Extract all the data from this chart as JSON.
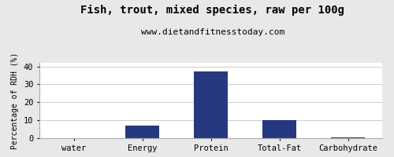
{
  "title": "Fish, trout, mixed species, raw per 100g",
  "subtitle": "www.dietandfitnesstoday.com",
  "categories": [
    "water",
    "Energy",
    "Protein",
    "Total-Fat",
    "Carbohydrate"
  ],
  "values": [
    0,
    7,
    37,
    10,
    0.5
  ],
  "bar_color": "#253880",
  "ylabel": "Percentage of RDH (%)",
  "ylim": [
    0,
    42
  ],
  "yticks": [
    0,
    10,
    20,
    30,
    40
  ],
  "background_color": "#e8e8e8",
  "plot_bg_color": "#ffffff",
  "title_fontsize": 10,
  "subtitle_fontsize": 8,
  "ylabel_fontsize": 7,
  "tick_fontsize": 7.5,
  "grid_color": "#cccccc"
}
